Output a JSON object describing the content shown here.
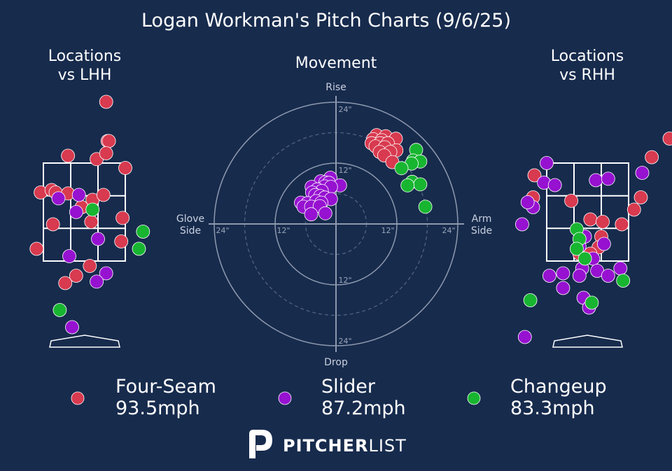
{
  "header": {
    "title": "Logan Workman's Pitch Charts (9/6/25)"
  },
  "panels": {
    "lhh": {
      "title_line1": "Locations",
      "title_line2": "vs LHH"
    },
    "movement": {
      "title": "Movement"
    },
    "rhh": {
      "title_line1": "Locations",
      "title_line2": "vs RHH"
    }
  },
  "movement_axes": {
    "top": "Rise",
    "bottom": "Drop",
    "left_line1": "Glove",
    "left_line2": "Side",
    "right_line1": "Arm",
    "right_line2": "Side",
    "ring_labels": [
      "24\"",
      "12\"",
      "12\"",
      "24\"",
      "12\"",
      "24\"",
      "24\"",
      "12\""
    ]
  },
  "legend": [
    {
      "pitch": "Four-Seam",
      "velo": "93.5mph",
      "color": "#d83a4f"
    },
    {
      "pitch": "Slider",
      "velo": "87.2mph",
      "color": "#9612d0"
    },
    {
      "pitch": "Changeup",
      "velo": "83.3mph",
      "color": "#18b531"
    }
  ],
  "brand": {
    "bold": "PITCHER",
    "light": "LIST"
  },
  "chart_data": [
    {
      "type": "scatter",
      "title": "Locations\nvs LHH",
      "grid": "strike zone 3x3",
      "series": [
        {
          "name": "Four-Seam",
          "color": "#d83a4f",
          "points": [
            [
              0.8,
              4.75
            ],
            [
              0.85,
              3.95
            ],
            [
              0.9,
              3.95
            ],
            [
              -0.6,
              3.65
            ],
            [
              0.45,
              3.58
            ],
            [
              0.8,
              3.7
            ],
            [
              1.5,
              3.4
            ],
            [
              -1.6,
              2.9
            ],
            [
              -1.2,
              2.95
            ],
            [
              -1.05,
              2.9
            ],
            [
              -0.6,
              2.88
            ],
            [
              0.3,
              2.75
            ],
            [
              0.7,
              2.85
            ],
            [
              -0.1,
              2.6
            ],
            [
              -1.15,
              2.25
            ],
            [
              0.25,
              2.3
            ],
            [
              1.4,
              2.38
            ],
            [
              -1.75,
              1.75
            ],
            [
              1.35,
              1.9
            ],
            [
              0.2,
              1.4
            ],
            [
              -0.3,
              1.2
            ],
            [
              -0.7,
              1.05
            ]
          ]
        },
        {
          "name": "Slider",
          "color": "#9612d0",
          "points": [
            [
              -0.95,
              2.78
            ],
            [
              -0.2,
              2.85
            ],
            [
              -0.3,
              2.5
            ],
            [
              0.5,
              1.95
            ],
            [
              -0.55,
              1.6
            ],
            [
              0.8,
              1.25
            ],
            [
              0.45,
              1.08
            ],
            [
              -0.45,
              0.15
            ]
          ]
        },
        {
          "name": "Changeup",
          "color": "#18b531",
          "points": [
            [
              0.3,
              2.55
            ],
            [
              2.15,
              2.1
            ],
            [
              2.0,
              1.75
            ],
            [
              -0.9,
              0.5
            ]
          ]
        }
      ]
    },
    {
      "type": "scatter",
      "title": "Movement",
      "xlabel": "Glove Side / Arm Side",
      "ylabel": "Drop / Rise",
      "xlim": [
        -24,
        24
      ],
      "ylim": [
        -24,
        24
      ],
      "rings": [
        6,
        12,
        18,
        24
      ],
      "series": [
        {
          "name": "Four-Seam",
          "color": "#d83a4f",
          "points": [
            [
              8,
              17.5
            ],
            [
              9.8,
              17.3
            ],
            [
              7.3,
              16.7
            ],
            [
              9,
              16.5
            ],
            [
              11.8,
              16.8
            ],
            [
              7,
              15.9
            ],
            [
              8.7,
              15.9
            ],
            [
              10.2,
              15.9
            ],
            [
              7.8,
              15.3
            ],
            [
              9.6,
              15.1
            ],
            [
              11.9,
              14.5
            ],
            [
              8.6,
              14.2
            ],
            [
              10.7,
              14.2
            ],
            [
              9.5,
              13.5
            ],
            [
              11.1,
              12.2
            ]
          ]
        },
        {
          "name": "Slider",
          "color": "#9612d0",
          "points": [
            [
              -1.1,
              9.1
            ],
            [
              -3,
              8.4
            ],
            [
              -2.1,
              8.2
            ],
            [
              -1.4,
              8.1
            ],
            [
              0.8,
              7.6
            ],
            [
              -4.8,
              7.3
            ],
            [
              -2.2,
              7.4
            ],
            [
              -1,
              7.3
            ],
            [
              -3.7,
              6.8
            ],
            [
              -2.8,
              6.5
            ],
            [
              -4.7,
              6.2
            ],
            [
              -4.1,
              5.7
            ],
            [
              -3.1,
              5.5
            ],
            [
              -2.2,
              5.2
            ],
            [
              -1,
              4.9
            ],
            [
              -6.9,
              4.2
            ],
            [
              -5.6,
              4.1
            ],
            [
              -3.9,
              4.5
            ],
            [
              -2.9,
              4.2
            ],
            [
              -6.4,
              3.4
            ],
            [
              -4.9,
              3.4
            ],
            [
              -3.2,
              3.5
            ],
            [
              -4.9,
              1.9
            ],
            [
              -2.1,
              2.1
            ]
          ]
        },
        {
          "name": "Changeup",
          "color": "#18b531",
          "points": [
            [
              15.8,
              14.6
            ],
            [
              15.2,
              12.5
            ],
            [
              16.6,
              12.3
            ],
            [
              14.9,
              11.9
            ],
            [
              12.9,
              11
            ],
            [
              15,
              8.3
            ],
            [
              16.6,
              7.8
            ],
            [
              14.1,
              7.6
            ],
            [
              17.6,
              3.4
            ]
          ]
        }
      ]
    },
    {
      "type": "scatter",
      "title": "Locations\nvs RHH",
      "grid": "strike zone 3x3",
      "series": [
        {
          "name": "Four-Seam",
          "color": "#d83a4f",
          "points": [
            [
              3.0,
              4.0
            ],
            [
              2.35,
              3.62
            ],
            [
              -1.95,
              3.25
            ],
            [
              -0.6,
              2.73
            ],
            [
              -2.0,
              2.8
            ],
            [
              1.95,
              2.8
            ],
            [
              1.7,
              2.55
            ],
            [
              0.1,
              2.35
            ],
            [
              0.55,
              2.3
            ],
            [
              1.25,
              2.25
            ],
            [
              0.5,
              2.0
            ],
            [
              3.4,
              2.0
            ],
            [
              0.4,
              1.78
            ],
            [
              -0.3,
              1.65
            ],
            [
              0.1,
              1.65
            ]
          ]
        },
        {
          "name": "Slider",
          "color": "#9612d0",
          "points": [
            [
              -1.5,
              3.5
            ],
            [
              -1.6,
              3.1
            ],
            [
              -1.2,
              3.05
            ],
            [
              0.3,
              3.15
            ],
            [
              0.75,
              3.18
            ],
            [
              2.0,
              3.3
            ],
            [
              -2.0,
              2.6
            ],
            [
              -2.2,
              2.7
            ],
            [
              -2.4,
              2.25
            ],
            [
              -0.1,
              2.0
            ],
            [
              -0.3,
              1.8
            ],
            [
              0.6,
              1.85
            ],
            [
              0.2,
              1.55
            ],
            [
              -0.2,
              1.35
            ],
            [
              1.2,
              1.35
            ],
            [
              -1.4,
              1.2
            ],
            [
              -0.9,
              1.25
            ],
            [
              -0.3,
              1.2
            ],
            [
              0.35,
              1.3
            ],
            [
              0.75,
              1.2
            ],
            [
              -0.9,
              0.95
            ],
            [
              -0.15,
              0.75
            ],
            [
              0.05,
              0.55
            ],
            [
              -2.3,
              -0.05
            ]
          ]
        },
        {
          "name": "Changeup",
          "color": "#18b531",
          "points": [
            [
              -0.4,
              2.15
            ],
            [
              -0.3,
              1.95
            ],
            [
              -0.4,
              1.75
            ],
            [
              -0.1,
              1.55
            ],
            [
              1.3,
              1.1
            ],
            [
              -2.1,
              0.7
            ],
            [
              0.15,
              0.65
            ]
          ]
        }
      ]
    }
  ]
}
